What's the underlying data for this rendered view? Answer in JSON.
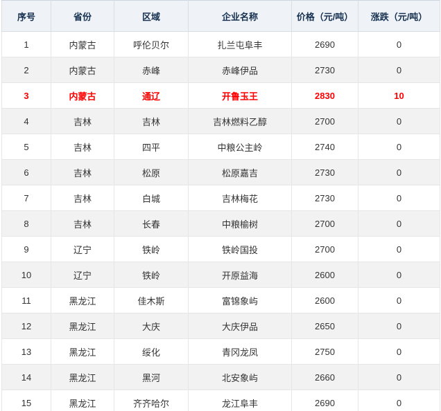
{
  "table": {
    "columns": [
      {
        "key": "index",
        "label": "序号"
      },
      {
        "key": "province",
        "label": "省份"
      },
      {
        "key": "region",
        "label": "区域"
      },
      {
        "key": "company",
        "label": "企业名称"
      },
      {
        "key": "price",
        "label": "价格（元/吨）"
      },
      {
        "key": "change",
        "label": "涨跌（元/吨）"
      }
    ],
    "rows": [
      {
        "index": "1",
        "province": "内蒙古",
        "region": "呼伦贝尔",
        "company": "扎兰屯阜丰",
        "price": "2690",
        "change": "0",
        "highlight": false
      },
      {
        "index": "2",
        "province": "内蒙古",
        "region": "赤峰",
        "company": "赤峰伊品",
        "price": "2730",
        "change": "0",
        "highlight": false
      },
      {
        "index": "3",
        "province": "内蒙古",
        "region": "通辽",
        "company": "开鲁玉王",
        "price": "2830",
        "change": "10",
        "highlight": true
      },
      {
        "index": "4",
        "province": "吉林",
        "region": "吉林",
        "company": "吉林燃料乙醇",
        "price": "2700",
        "change": "0",
        "highlight": false
      },
      {
        "index": "5",
        "province": "吉林",
        "region": "四平",
        "company": "中粮公主岭",
        "price": "2740",
        "change": "0",
        "highlight": false
      },
      {
        "index": "6",
        "province": "吉林",
        "region": "松原",
        "company": "松原嘉吉",
        "price": "2730",
        "change": "0",
        "highlight": false
      },
      {
        "index": "7",
        "province": "吉林",
        "region": "白城",
        "company": "吉林梅花",
        "price": "2730",
        "change": "0",
        "highlight": false
      },
      {
        "index": "8",
        "province": "吉林",
        "region": "长春",
        "company": "中粮榆树",
        "price": "2700",
        "change": "0",
        "highlight": false
      },
      {
        "index": "9",
        "province": "辽宁",
        "region": "铁岭",
        "company": "铁岭国投",
        "price": "2700",
        "change": "0",
        "highlight": false
      },
      {
        "index": "10",
        "province": "辽宁",
        "region": "铁岭",
        "company": "开原益海",
        "price": "2600",
        "change": "0",
        "highlight": false
      },
      {
        "index": "11",
        "province": "黑龙江",
        "region": "佳木斯",
        "company": "富锦象屿",
        "price": "2600",
        "change": "0",
        "highlight": false
      },
      {
        "index": "12",
        "province": "黑龙江",
        "region": "大庆",
        "company": "大庆伊品",
        "price": "2650",
        "change": "0",
        "highlight": false
      },
      {
        "index": "13",
        "province": "黑龙江",
        "region": "绥化",
        "company": "青冈龙凤",
        "price": "2750",
        "change": "0",
        "highlight": false
      },
      {
        "index": "14",
        "province": "黑龙江",
        "region": "黑河",
        "company": "北安象屿",
        "price": "2660",
        "change": "0",
        "highlight": false
      },
      {
        "index": "15",
        "province": "黑龙江",
        "region": "齐齐哈尔",
        "company": "龙江阜丰",
        "price": "2690",
        "change": "0",
        "highlight": false
      }
    ]
  },
  "colors": {
    "highlight_text": "#ff0000",
    "header_text": "#16304f",
    "header_background": "#eff3f8",
    "even_row_background": "#f2f2f2",
    "body_text": "#333333",
    "grid_border": "#e6e6e6"
  },
  "chart_data": {
    "type": "table",
    "title": "",
    "columns": [
      "序号",
      "省份",
      "区域",
      "企业名称",
      "价格（元/吨）",
      "涨跌（元/吨）"
    ],
    "prices": [
      2690,
      2730,
      2830,
      2700,
      2740,
      2730,
      2730,
      2700,
      2700,
      2600,
      2600,
      2650,
      2750,
      2660,
      2690
    ],
    "changes": [
      0,
      0,
      10,
      0,
      0,
      0,
      0,
      0,
      0,
      0,
      0,
      0,
      0,
      0,
      0
    ]
  }
}
